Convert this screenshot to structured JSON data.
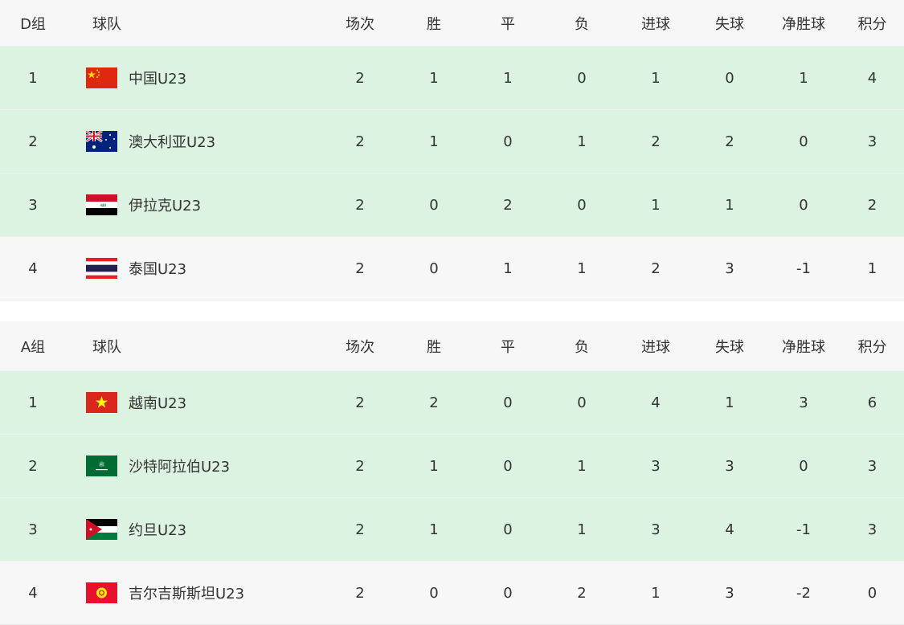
{
  "columns": [
    "球队",
    "场次",
    "胜",
    "平",
    "负",
    "进球",
    "失球",
    "净胜球",
    "积分"
  ],
  "groups": [
    {
      "name": "D组",
      "rows": [
        {
          "rank": "1",
          "team": "中国U23",
          "flag": "china-flag",
          "stats": [
            "2",
            "1",
            "1",
            "0",
            "1",
            "0",
            "1",
            "4"
          ],
          "highlight": true
        },
        {
          "rank": "2",
          "team": "澳大利亚U23",
          "flag": "australia-flag",
          "stats": [
            "2",
            "1",
            "0",
            "1",
            "2",
            "2",
            "0",
            "3"
          ],
          "highlight": true
        },
        {
          "rank": "3",
          "team": "伊拉克U23",
          "flag": "iraq-flag",
          "stats": [
            "2",
            "0",
            "2",
            "0",
            "1",
            "1",
            "0",
            "2"
          ],
          "highlight": true
        },
        {
          "rank": "4",
          "team": "泰国U23",
          "flag": "thailand-flag",
          "stats": [
            "2",
            "0",
            "1",
            "1",
            "2",
            "3",
            "-1",
            "1"
          ],
          "highlight": false
        }
      ]
    },
    {
      "name": "A组",
      "rows": [
        {
          "rank": "1",
          "team": "越南U23",
          "flag": "vietnam-flag",
          "stats": [
            "2",
            "2",
            "0",
            "0",
            "4",
            "1",
            "3",
            "6"
          ],
          "highlight": true
        },
        {
          "rank": "2",
          "team": "沙特阿拉伯U23",
          "flag": "saudi-arabia-flag",
          "stats": [
            "2",
            "1",
            "0",
            "1",
            "3",
            "3",
            "0",
            "3"
          ],
          "highlight": true
        },
        {
          "rank": "3",
          "team": "约旦U23",
          "flag": "jordan-flag",
          "stats": [
            "2",
            "1",
            "0",
            "1",
            "3",
            "4",
            "-1",
            "3"
          ],
          "highlight": true
        },
        {
          "rank": "4",
          "team": "吉尔吉斯斯坦U23",
          "flag": "kyrgyzstan-flag",
          "stats": [
            "2",
            "0",
            "0",
            "2",
            "1",
            "3",
            "-2",
            "0"
          ],
          "highlight": false
        }
      ]
    }
  ],
  "colors": {
    "highlight_row": "#ddf3e1",
    "header_row": "#f7f7f7",
    "text": "#333333"
  }
}
